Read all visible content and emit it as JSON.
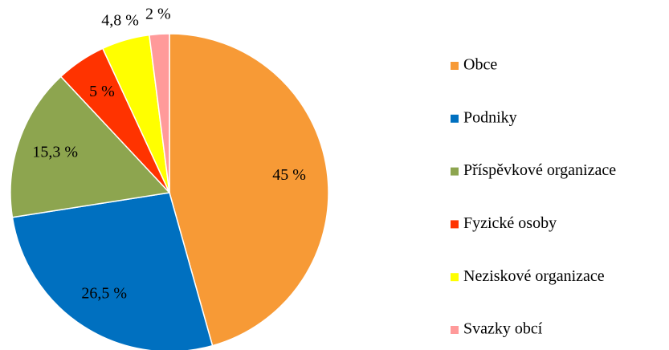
{
  "chart_data": {
    "type": "pie",
    "categories": [
      "Obce",
      "Podniky",
      "Příspěvkové organizace",
      "Fyzické osoby",
      "Neziskové organizace",
      "Svazky obcí"
    ],
    "values": [
      45,
      26.5,
      15.3,
      5,
      4.8,
      2
    ],
    "value_labels": [
      "45 %",
      "26,5 %",
      "15,3 %",
      "5 %",
      "4,8 %",
      "2 %"
    ],
    "colors": [
      "#F79A36",
      "#0070C0",
      "#8DA54F",
      "#FF3300",
      "#FFFF00",
      "#FF9A9A"
    ],
    "legend": "right"
  }
}
